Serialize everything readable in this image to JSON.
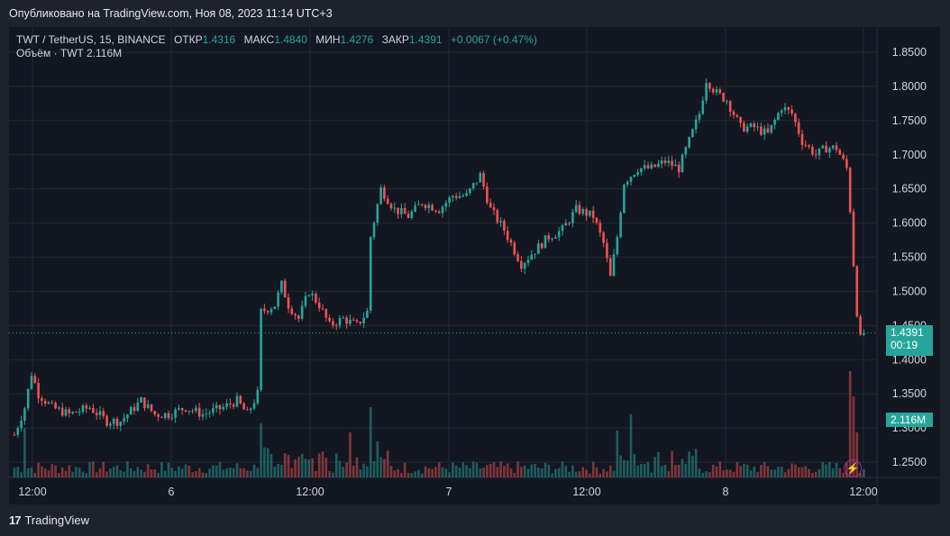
{
  "header": {
    "published": "Опубликовано на TradingView.com, Ноя 08, 2023 11:14 UTC+3"
  },
  "legend": {
    "symbol": "TWT / TetherUS, 15, BINANCE",
    "open_label": "ОТКР",
    "open": "1.4316",
    "high_label": "МАКС",
    "high": "1.4840",
    "low_label": "МИН",
    "low": "1.4276",
    "close_label": "ЗАКР",
    "close": "1.4391",
    "change": "+0.0067 (+0.47%)",
    "volume_label": "Объём · TWT",
    "volume": "2.116M"
  },
  "tags": {
    "price": "1.4391",
    "countdown": "00:19",
    "volume": "2.116M"
  },
  "footer": {
    "brand": "TradingView"
  },
  "colors": {
    "up": "#26a69a",
    "down": "#ef5350",
    "bg": "#131722",
    "grid": "#242832",
    "alert": "#9c27b0"
  },
  "icons": [
    "tradingview-logo-icon",
    "lightning-icon"
  ],
  "chart_data": {
    "type": "candlestick",
    "timeframe": "15",
    "y_ticks": [
      "1.8500",
      "1.8000",
      "1.7500",
      "1.7000",
      "1.6500",
      "1.6000",
      "1.5500",
      "1.5000",
      "1.4500",
      "1.4000",
      "1.3500",
      "1.3000",
      "1.2500"
    ],
    "x_ticks": [
      "12:00",
      "6",
      "12:00",
      "7",
      "12:00",
      "8",
      "12:00"
    ],
    "ylim": [
      1.22,
      1.87
    ],
    "last_price": 1.4391,
    "close_path": [
      [
        0,
        1.29
      ],
      [
        3,
        1.33
      ],
      [
        5,
        1.38
      ],
      [
        7,
        1.35
      ],
      [
        11,
        1.33
      ],
      [
        16,
        1.32
      ],
      [
        22,
        1.33
      ],
      [
        27,
        1.31
      ],
      [
        31,
        1.31
      ],
      [
        37,
        1.34
      ],
      [
        41,
        1.32
      ],
      [
        45,
        1.32
      ],
      [
        50,
        1.33
      ],
      [
        55,
        1.32
      ],
      [
        61,
        1.33
      ],
      [
        65,
        1.34
      ],
      [
        68,
        1.32
      ],
      [
        71,
        1.35
      ],
      [
        72,
        1.47
      ],
      [
        76,
        1.48
      ],
      [
        78,
        1.51
      ],
      [
        80,
        1.48
      ],
      [
        83,
        1.46
      ],
      [
        86,
        1.5
      ],
      [
        89,
        1.48
      ],
      [
        92,
        1.45
      ],
      [
        96,
        1.46
      ],
      [
        100,
        1.45
      ],
      [
        103,
        1.47
      ],
      [
        104,
        1.58
      ],
      [
        107,
        1.65
      ],
      [
        111,
        1.62
      ],
      [
        115,
        1.61
      ],
      [
        119,
        1.63
      ],
      [
        124,
        1.62
      ],
      [
        128,
        1.64
      ],
      [
        132,
        1.64
      ],
      [
        136,
        1.67
      ],
      [
        139,
        1.62
      ],
      [
        143,
        1.59
      ],
      [
        148,
        1.54
      ],
      [
        152,
        1.56
      ],
      [
        156,
        1.58
      ],
      [
        160,
        1.59
      ],
      [
        164,
        1.62
      ],
      [
        169,
        1.61
      ],
      [
        172,
        1.57
      ],
      [
        174,
        1.52
      ],
      [
        176,
        1.58
      ],
      [
        178,
        1.66
      ],
      [
        182,
        1.68
      ],
      [
        186,
        1.68
      ],
      [
        190,
        1.69
      ],
      [
        194,
        1.68
      ],
      [
        197,
        1.72
      ],
      [
        200,
        1.76
      ],
      [
        202,
        1.81
      ],
      [
        205,
        1.79
      ],
      [
        208,
        1.78
      ],
      [
        212,
        1.74
      ],
      [
        216,
        1.74
      ],
      [
        220,
        1.73
      ],
      [
        224,
        1.77
      ],
      [
        227,
        1.76
      ],
      [
        230,
        1.72
      ],
      [
        234,
        1.7
      ],
      [
        237,
        1.71
      ],
      [
        240,
        1.71
      ],
      [
        243,
        1.68
      ],
      [
        244,
        1.62
      ],
      [
        245,
        1.54
      ],
      [
        246,
        1.47
      ],
      [
        247,
        1.43
      ],
      [
        248,
        1.4391
      ]
    ],
    "volume_spikes": [
      [
        3,
        55
      ],
      [
        72,
        60
      ],
      [
        98,
        50
      ],
      [
        104,
        78
      ],
      [
        106,
        40
      ],
      [
        176,
        52
      ],
      [
        180,
        70
      ],
      [
        244,
        118
      ],
      [
        245,
        90
      ],
      [
        246,
        50
      ]
    ],
    "volume_max_note": "relative heights"
  }
}
